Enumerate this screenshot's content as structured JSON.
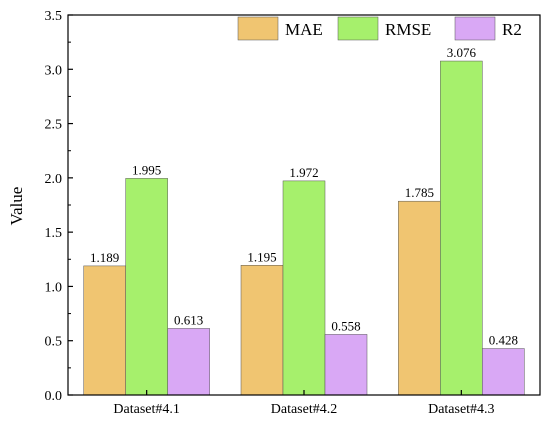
{
  "chart_data": {
    "type": "bar",
    "title": "",
    "xlabel": "",
    "ylabel": "Value",
    "categories": [
      "Dataset#4.1",
      "Dataset#4.2",
      "Dataset#4.3"
    ],
    "series": [
      {
        "name": "MAE",
        "values": [
          1.189,
          1.195,
          1.785
        ],
        "labels": [
          "1.189",
          "1.195",
          "1.785"
        ],
        "color": "#F0C571"
      },
      {
        "name": "RMSE",
        "values": [
          1.995,
          1.972,
          3.076
        ],
        "labels": [
          "1.995",
          "1.972",
          "3.076"
        ],
        "color": "#A6F06C"
      },
      {
        "name": "R2",
        "values": [
          0.613,
          0.558,
          0.428
        ],
        "labels": [
          "0.613",
          "0.558",
          "0.428"
        ],
        "color": "#D9A8F5"
      }
    ],
    "ylim": [
      0,
      3.5
    ],
    "yticks": [
      0.0,
      0.5,
      1.0,
      1.5,
      2.0,
      2.5,
      3.0,
      3.5
    ],
    "ytick_labels": [
      "0.0",
      "0.5",
      "1.0",
      "1.5",
      "2.0",
      "2.5",
      "3.0",
      "3.5"
    ],
    "grid": false,
    "legend_position": "top-right",
    "colors": {
      "axis": "#000000",
      "bar_edge": "#555555"
    }
  }
}
